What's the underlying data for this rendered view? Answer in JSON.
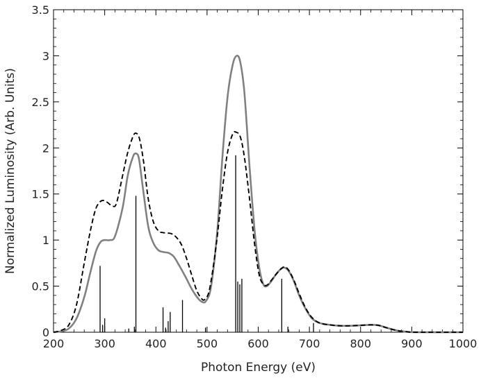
{
  "chart_data": {
    "type": "line",
    "title": "",
    "xlabel": "Photon Energy (eV)",
    "ylabel": "Normalized Luminosity (Arb. Units)",
    "xlim": [
      200,
      1000
    ],
    "ylim": [
      0,
      3.5
    ],
    "x_ticks": [
      "200",
      "300",
      "400",
      "500",
      "600",
      "700",
      "800",
      "900",
      "1000"
    ],
    "y_ticks": [
      "0",
      "0.5",
      "1",
      "1.5",
      "2",
      "2.5",
      "3",
      "3.5"
    ],
    "grid": false,
    "legend": "none",
    "series": [
      {
        "style": "solid-gray",
        "color": "#808080",
        "points": [
          [
            200,
            0
          ],
          [
            215,
            0.01
          ],
          [
            230,
            0.04
          ],
          [
            245,
            0.15
          ],
          [
            260,
            0.38
          ],
          [
            272,
            0.65
          ],
          [
            283,
            0.88
          ],
          [
            292,
            0.98
          ],
          [
            300,
            1.0
          ],
          [
            310,
            1.0
          ],
          [
            320,
            1.04
          ],
          [
            335,
            1.35
          ],
          [
            345,
            1.7
          ],
          [
            355,
            1.9
          ],
          [
            361,
            1.94
          ],
          [
            367,
            1.88
          ],
          [
            375,
            1.55
          ],
          [
            385,
            1.15
          ],
          [
            395,
            0.97
          ],
          [
            405,
            0.89
          ],
          [
            415,
            0.87
          ],
          [
            425,
            0.86
          ],
          [
            435,
            0.82
          ],
          [
            445,
            0.73
          ],
          [
            458,
            0.6
          ],
          [
            470,
            0.47
          ],
          [
            482,
            0.37
          ],
          [
            490,
            0.33
          ],
          [
            498,
            0.34
          ],
          [
            508,
            0.5
          ],
          [
            520,
            1.1
          ],
          [
            530,
            1.9
          ],
          [
            540,
            2.55
          ],
          [
            550,
            2.9
          ],
          [
            558,
            3.0
          ],
          [
            565,
            2.93
          ],
          [
            573,
            2.6
          ],
          [
            583,
            1.8
          ],
          [
            593,
            1.1
          ],
          [
            602,
            0.7
          ],
          [
            610,
            0.52
          ],
          [
            617,
            0.5
          ],
          [
            625,
            0.55
          ],
          [
            635,
            0.63
          ],
          [
            645,
            0.69
          ],
          [
            652,
            0.7
          ],
          [
            660,
            0.66
          ],
          [
            670,
            0.55
          ],
          [
            680,
            0.4
          ],
          [
            692,
            0.26
          ],
          [
            705,
            0.15
          ],
          [
            720,
            0.1
          ],
          [
            740,
            0.08
          ],
          [
            760,
            0.07
          ],
          [
            780,
            0.07
          ],
          [
            800,
            0.075
          ],
          [
            820,
            0.08
          ],
          [
            835,
            0.075
          ],
          [
            850,
            0.05
          ],
          [
            870,
            0.02
          ],
          [
            890,
            0.005
          ],
          [
            910,
            0
          ],
          [
            1000,
            0
          ]
        ]
      },
      {
        "style": "dashed-black",
        "color": "#000000",
        "points": [
          [
            200,
            0
          ],
          [
            215,
            0.02
          ],
          [
            230,
            0.08
          ],
          [
            245,
            0.3
          ],
          [
            260,
            0.75
          ],
          [
            272,
            1.1
          ],
          [
            282,
            1.33
          ],
          [
            290,
            1.41
          ],
          [
            297,
            1.43
          ],
          [
            305,
            1.41
          ],
          [
            315,
            1.37
          ],
          [
            323,
            1.4
          ],
          [
            335,
            1.7
          ],
          [
            345,
            1.95
          ],
          [
            355,
            2.12
          ],
          [
            361,
            2.16
          ],
          [
            368,
            2.1
          ],
          [
            376,
            1.85
          ],
          [
            385,
            1.45
          ],
          [
            395,
            1.2
          ],
          [
            405,
            1.1
          ],
          [
            415,
            1.08
          ],
          [
            430,
            1.07
          ],
          [
            440,
            1.03
          ],
          [
            450,
            0.95
          ],
          [
            460,
            0.8
          ],
          [
            470,
            0.62
          ],
          [
            480,
            0.45
          ],
          [
            490,
            0.36
          ],
          [
            496,
            0.36
          ],
          [
            505,
            0.47
          ],
          [
            518,
            0.95
          ],
          [
            530,
            1.55
          ],
          [
            540,
            1.95
          ],
          [
            550,
            2.15
          ],
          [
            557,
            2.17
          ],
          [
            565,
            2.12
          ],
          [
            573,
            1.9
          ],
          [
            583,
            1.45
          ],
          [
            593,
            0.95
          ],
          [
            602,
            0.62
          ],
          [
            610,
            0.52
          ],
          [
            617,
            0.51
          ],
          [
            625,
            0.56
          ],
          [
            635,
            0.63
          ],
          [
            645,
            0.69
          ],
          [
            652,
            0.71
          ],
          [
            660,
            0.67
          ],
          [
            670,
            0.56
          ],
          [
            680,
            0.42
          ],
          [
            692,
            0.27
          ],
          [
            705,
            0.16
          ],
          [
            720,
            0.1
          ],
          [
            740,
            0.08
          ],
          [
            760,
            0.07
          ],
          [
            780,
            0.07
          ],
          [
            800,
            0.075
          ],
          [
            820,
            0.08
          ],
          [
            835,
            0.075
          ],
          [
            850,
            0.05
          ],
          [
            870,
            0.02
          ],
          [
            890,
            0.005
          ],
          [
            910,
            0
          ],
          [
            1000,
            0
          ]
        ]
      },
      {
        "style": "sticks",
        "color": "#000000",
        "sticks": [
          [
            291,
            0.72
          ],
          [
            296,
            0.08
          ],
          [
            300,
            0.15
          ],
          [
            347,
            0.04
          ],
          [
            358,
            0.06
          ],
          [
            361,
            1.48
          ],
          [
            414,
            0.27
          ],
          [
            419,
            0.05
          ],
          [
            424,
            0.12
          ],
          [
            428,
            0.22
          ],
          [
            452,
            0.35
          ],
          [
            497,
            0.05
          ],
          [
            556,
            1.92
          ],
          [
            560,
            0.55
          ],
          [
            564,
            0.52
          ],
          [
            568,
            0.58
          ],
          [
            646,
            0.58
          ],
          [
            658,
            0.06
          ],
          [
            708,
            0.1
          ]
        ]
      }
    ]
  }
}
